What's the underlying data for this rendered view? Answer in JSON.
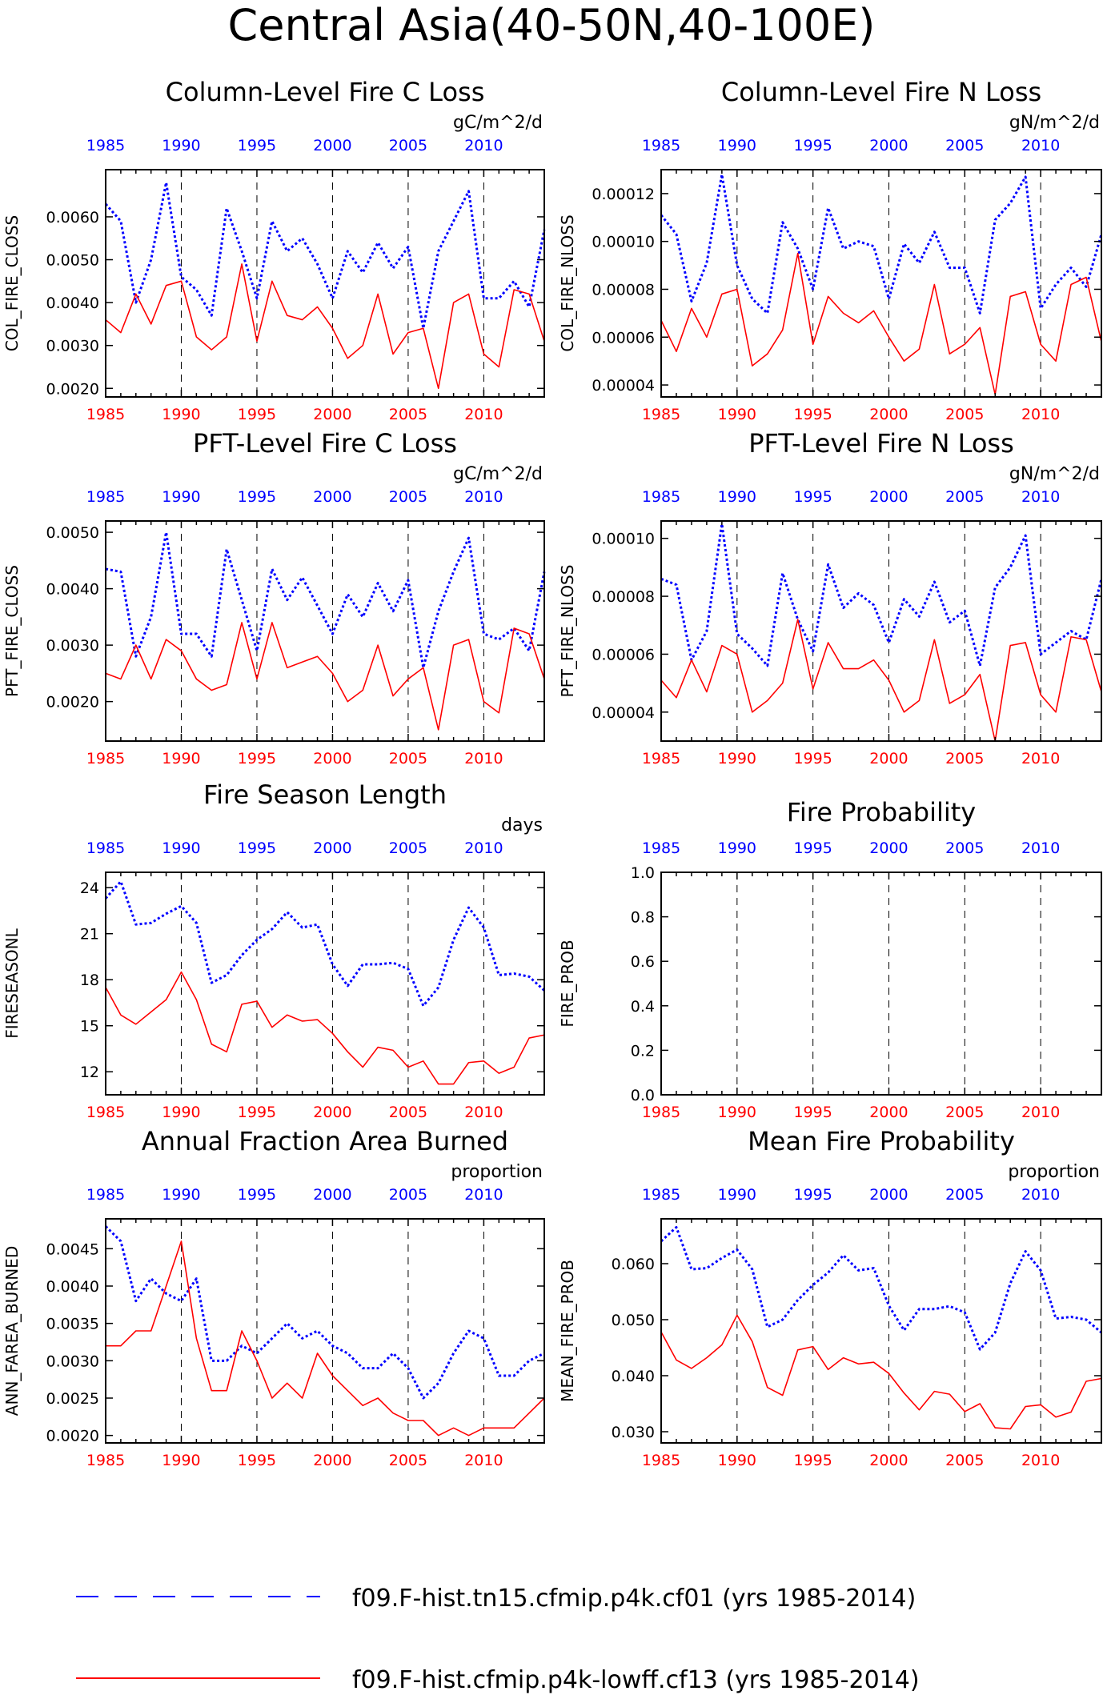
{
  "page_title": "Central Asia(40-50N,40-100E)",
  "colors": {
    "case1": "#0000ff",
    "case2": "#ff0000",
    "axis": "#000000"
  },
  "legend": {
    "case1_label": "f09.F-hist.tn15.cfmip.p4k.cf01 (yrs 1985-2014)",
    "case2_label": "f09.F-hist.cfmip.p4k-lowff.cf13 (yrs 1985-2014)"
  },
  "chart_data": [
    {
      "type": "line",
      "title": "Column-Level Fire C Loss",
      "units": "gC/m^2/d",
      "ylabel": "COL_FIRE_CLOSS",
      "xlim": [
        1985,
        2014
      ],
      "ylim": [
        0.0018,
        0.0071
      ],
      "yticks": [
        0.002,
        0.003,
        0.004,
        0.005,
        0.006
      ],
      "yticklabels": [
        "0.0020",
        "0.0030",
        "0.0040",
        "0.0050",
        "0.0060"
      ],
      "xticks": [
        1985,
        1990,
        1995,
        2000,
        2005,
        2010
      ],
      "x": [
        1985,
        1986,
        1987,
        1988,
        1989,
        1990,
        1991,
        1992,
        1993,
        1994,
        1995,
        1996,
        1997,
        1998,
        1999,
        2000,
        2001,
        2002,
        2003,
        2004,
        2005,
        2006,
        2007,
        2008,
        2009,
        2010,
        2011,
        2012,
        2013,
        2014
      ],
      "series": [
        {
          "values": [
            0.0063,
            0.0059,
            0.004,
            0.005,
            0.0068,
            0.0046,
            0.0043,
            0.0037,
            0.0062,
            0.0052,
            0.0041,
            0.0059,
            0.0052,
            0.0055,
            0.0049,
            0.0041,
            0.0052,
            0.0047,
            0.0054,
            0.0048,
            0.0053,
            0.0034,
            0.0052,
            0.0059,
            0.0066,
            0.0041,
            0.0041,
            0.0045,
            0.0039,
            0.0057
          ]
        },
        {
          "values": [
            0.0036,
            0.0033,
            0.0042,
            0.0035,
            0.0044,
            0.0045,
            0.0032,
            0.0029,
            0.0032,
            0.0049,
            0.0031,
            0.0045,
            0.0037,
            0.0036,
            0.0039,
            0.0034,
            0.0027,
            0.003,
            0.0042,
            0.0028,
            0.0033,
            0.0034,
            0.002,
            0.004,
            0.0042,
            0.0028,
            0.0025,
            0.0043,
            0.0042,
            0.0031
          ]
        }
      ]
    },
    {
      "type": "line",
      "title": "Column-Level Fire N Loss",
      "units": "gN/m^2/d",
      "ylabel": "COL_FIRE_NLOSS",
      "xlim": [
        1985,
        2014
      ],
      "ylim": [
        3.5e-05,
        0.00013
      ],
      "yticks": [
        4e-05,
        6e-05,
        8e-05,
        0.0001,
        0.00012
      ],
      "yticklabels": [
        "0.00004",
        "0.00006",
        "0.00008",
        "0.00010",
        "0.00012"
      ],
      "xticks": [
        1985,
        1990,
        1995,
        2000,
        2005,
        2010
      ],
      "x": [
        1985,
        1986,
        1987,
        1988,
        1989,
        1990,
        1991,
        1992,
        1993,
        1994,
        1995,
        1996,
        1997,
        1998,
        1999,
        2000,
        2001,
        2002,
        2003,
        2004,
        2005,
        2006,
        2007,
        2008,
        2009,
        2010,
        2011,
        2012,
        2013,
        2014
      ],
      "series": [
        {
          "values": [
            0.000111,
            0.000103,
            7.5e-05,
            9.1e-05,
            0.000128,
            9e-05,
            7.6e-05,
            7e-05,
            0.000108,
            9.7e-05,
            8e-05,
            0.000114,
            9.7e-05,
            0.0001,
            9.8e-05,
            7.6e-05,
            9.9e-05,
            9.1e-05,
            0.000104,
            8.9e-05,
            8.9e-05,
            7e-05,
            0.000109,
            0.000116,
            0.000127,
            7.2e-05,
            8.2e-05,
            8.9e-05,
            8.1e-05,
            0.000103
          ]
        },
        {
          "values": [
            6.7e-05,
            5.4e-05,
            7.2e-05,
            6e-05,
            7.8e-05,
            8e-05,
            4.8e-05,
            5.3e-05,
            6.3e-05,
            9.5e-05,
            5.7e-05,
            7.7e-05,
            7e-05,
            6.6e-05,
            7.1e-05,
            6e-05,
            5e-05,
            5.5e-05,
            8.2e-05,
            5.3e-05,
            5.7e-05,
            6.4e-05,
            3.6e-05,
            7.7e-05,
            7.9e-05,
            5.7e-05,
            5e-05,
            8.2e-05,
            8.5e-05,
            5.8e-05
          ]
        }
      ]
    },
    {
      "type": "line",
      "title": "PFT-Level Fire C Loss",
      "units": "gC/m^2/d",
      "ylabel": "PFT_FIRE_CLOSS",
      "xlim": [
        1985,
        2014
      ],
      "ylim": [
        0.0013,
        0.0052
      ],
      "yticks": [
        0.002,
        0.003,
        0.004,
        0.005
      ],
      "yticklabels": [
        "0.0020",
        "0.0030",
        "0.0040",
        "0.0050"
      ],
      "xticks": [
        1985,
        1990,
        1995,
        2000,
        2005,
        2010
      ],
      "x": [
        1985,
        1986,
        1987,
        1988,
        1989,
        1990,
        1991,
        1992,
        1993,
        1994,
        1995,
        1996,
        1997,
        1998,
        1999,
        2000,
        2001,
        2002,
        2003,
        2004,
        2005,
        2006,
        2007,
        2008,
        2009,
        2010,
        2011,
        2012,
        2013,
        2014
      ],
      "series": [
        {
          "values": [
            0.00435,
            0.0043,
            0.0028,
            0.0035,
            0.005,
            0.0032,
            0.0032,
            0.0028,
            0.0047,
            0.0038,
            0.0029,
            0.00435,
            0.0038,
            0.0042,
            0.0037,
            0.0032,
            0.0039,
            0.0035,
            0.0041,
            0.0036,
            0.00415,
            0.0026,
            0.0036,
            0.0043,
            0.0049,
            0.0032,
            0.0031,
            0.0033,
            0.0029,
            0.0043
          ]
        },
        {
          "values": [
            0.0025,
            0.0024,
            0.003,
            0.0024,
            0.0031,
            0.0029,
            0.0024,
            0.0022,
            0.0023,
            0.0034,
            0.0024,
            0.0034,
            0.0026,
            0.0027,
            0.0028,
            0.0025,
            0.002,
            0.0022,
            0.003,
            0.0021,
            0.0024,
            0.0026,
            0.0015,
            0.003,
            0.0031,
            0.002,
            0.0018,
            0.0033,
            0.0032,
            0.0024
          ]
        }
      ]
    },
    {
      "type": "line",
      "title": "PFT-Level Fire N Loss",
      "units": "gN/m^2/d",
      "ylabel": "PFT_FIRE_NLOSS",
      "xlim": [
        1985,
        2014
      ],
      "ylim": [
        3e-05,
        0.000106
      ],
      "yticks": [
        4e-05,
        6e-05,
        8e-05,
        0.0001
      ],
      "yticklabels": [
        "0.00004",
        "0.00006",
        "0.00008",
        "0.00010"
      ],
      "xticks": [
        1985,
        1990,
        1995,
        2000,
        2005,
        2010
      ],
      "x": [
        1985,
        1986,
        1987,
        1988,
        1989,
        1990,
        1991,
        1992,
        1993,
        1994,
        1995,
        1996,
        1997,
        1998,
        1999,
        2000,
        2001,
        2002,
        2003,
        2004,
        2005,
        2006,
        2007,
        2008,
        2009,
        2010,
        2011,
        2012,
        2013,
        2014
      ],
      "series": [
        {
          "values": [
            8.6e-05,
            8.4e-05,
            5.8e-05,
            6.8e-05,
            0.000105,
            6.7e-05,
            6.2e-05,
            5.6e-05,
            8.8e-05,
            7.2e-05,
            6.1e-05,
            9.1e-05,
            7.6e-05,
            8.1e-05,
            7.7e-05,
            6.4e-05,
            7.9e-05,
            7.3e-05,
            8.5e-05,
            7.1e-05,
            7.5e-05,
            5.6e-05,
            8.3e-05,
            9e-05,
            0.000101,
            6e-05,
            6.4e-05,
            6.8e-05,
            6.5e-05,
            8.6e-05
          ]
        },
        {
          "values": [
            5.1e-05,
            4.5e-05,
            5.8e-05,
            4.7e-05,
            6.3e-05,
            6e-05,
            4e-05,
            4.4e-05,
            5e-05,
            7.2e-05,
            4.8e-05,
            6.4e-05,
            5.5e-05,
            5.5e-05,
            5.8e-05,
            5.1e-05,
            4e-05,
            4.4e-05,
            6.5e-05,
            4.3e-05,
            4.6e-05,
            5.3e-05,
            3e-05,
            6.3e-05,
            6.4e-05,
            4.6e-05,
            4e-05,
            6.6e-05,
            6.5e-05,
            4.7e-05
          ]
        }
      ]
    },
    {
      "type": "line",
      "title": "Fire Season Length",
      "units": "days",
      "ylabel": "FIRESEASONL",
      "xlim": [
        1985,
        2014
      ],
      "ylim": [
        10.5,
        25
      ],
      "yticks": [
        12,
        15,
        18,
        21,
        24
      ],
      "yticklabels": [
        "12",
        "15",
        "18",
        "21",
        "24"
      ],
      "xticks": [
        1985,
        1990,
        1995,
        2000,
        2005,
        2010
      ],
      "x": [
        1985,
        1986,
        1987,
        1988,
        1989,
        1990,
        1991,
        1992,
        1993,
        1994,
        1995,
        1996,
        1997,
        1998,
        1999,
        2000,
        2001,
        2002,
        2003,
        2004,
        2005,
        2006,
        2007,
        2008,
        2009,
        2010,
        2011,
        2012,
        2013,
        2014
      ],
      "series": [
        {
          "values": [
            23.3,
            24.4,
            21.6,
            21.7,
            22.3,
            22.8,
            21.7,
            17.8,
            18.3,
            19.6,
            20.6,
            21.3,
            22.4,
            21.4,
            21.6,
            19.0,
            17.6,
            19.0,
            19.0,
            19.1,
            18.7,
            16.3,
            17.5,
            20.6,
            22.7,
            21.4,
            18.3,
            18.4,
            18.2,
            17.3
          ]
        },
        {
          "values": [
            17.5,
            15.7,
            15.1,
            15.9,
            16.7,
            18.5,
            16.7,
            13.8,
            13.3,
            16.4,
            16.6,
            14.9,
            15.7,
            15.3,
            15.4,
            14.5,
            13.3,
            12.3,
            13.6,
            13.4,
            12.3,
            12.7,
            11.2,
            11.2,
            12.6,
            12.7,
            11.9,
            12.3,
            14.2,
            14.4
          ]
        }
      ]
    },
    {
      "type": "line",
      "title": "Fire Probability",
      "units": "",
      "ylabel": "FIRE_PROB",
      "xlim": [
        1985,
        2014
      ],
      "ylim": [
        0,
        1
      ],
      "yticks": [
        0,
        0.2,
        0.4,
        0.6,
        0.8,
        1.0
      ],
      "yticklabels": [
        "0.0",
        "0.2",
        "0.4",
        "0.6",
        "0.8",
        "1.0"
      ],
      "xticks": [
        1985,
        1990,
        1995,
        2000,
        2005,
        2010
      ],
      "x": [],
      "series": [
        {
          "values": []
        },
        {
          "values": []
        }
      ]
    },
    {
      "type": "line",
      "title": "Annual Fraction Area Burned",
      "units": "proportion",
      "ylabel": "ANN_FAREA_BURNED",
      "xlim": [
        1985,
        2014
      ],
      "ylim": [
        0.0019,
        0.0049
      ],
      "yticks": [
        0.002,
        0.0025,
        0.003,
        0.0035,
        0.004,
        0.0045
      ],
      "yticklabels": [
        "0.0020",
        "0.0025",
        "0.0030",
        "0.0035",
        "0.0040",
        "0.0045"
      ],
      "xticks": [
        1985,
        1990,
        1995,
        2000,
        2005,
        2010
      ],
      "x": [
        1985,
        1986,
        1987,
        1988,
        1989,
        1990,
        1991,
        1992,
        1993,
        1994,
        1995,
        1996,
        1997,
        1998,
        1999,
        2000,
        2001,
        2002,
        2003,
        2004,
        2005,
        2006,
        2007,
        2008,
        2009,
        2010,
        2011,
        2012,
        2013,
        2014
      ],
      "series": [
        {
          "values": [
            0.0048,
            0.0046,
            0.0038,
            0.0041,
            0.0039,
            0.0038,
            0.0041,
            0.003,
            0.003,
            0.0032,
            0.0031,
            0.0033,
            0.0035,
            0.0033,
            0.0034,
            0.0032,
            0.0031,
            0.0029,
            0.0029,
            0.0031,
            0.0029,
            0.0025,
            0.0027,
            0.0031,
            0.0034,
            0.0033,
            0.0028,
            0.0028,
            0.003,
            0.0031
          ]
        },
        {
          "values": [
            0.0032,
            0.0032,
            0.0034,
            0.0034,
            0.004,
            0.0046,
            0.0033,
            0.0026,
            0.0026,
            0.0034,
            0.003,
            0.0025,
            0.0027,
            0.0025,
            0.0031,
            0.0028,
            0.0026,
            0.0024,
            0.0025,
            0.0023,
            0.0022,
            0.0022,
            0.002,
            0.0021,
            0.002,
            0.0021,
            0.0021,
            0.0021,
            0.0023,
            0.0025
          ]
        }
      ]
    },
    {
      "type": "line",
      "title": "Mean Fire Probability",
      "units": "proportion",
      "ylabel": "MEAN_FIRE_PROB",
      "xlim": [
        1985,
        2014
      ],
      "ylim": [
        0.028,
        0.068
      ],
      "yticks": [
        0.03,
        0.04,
        0.05,
        0.06
      ],
      "yticklabels": [
        "0.030",
        "0.040",
        "0.050",
        "0.060"
      ],
      "xticks": [
        1985,
        1990,
        1995,
        2000,
        2005,
        2010
      ],
      "x": [
        1985,
        1986,
        1987,
        1988,
        1989,
        1990,
        1991,
        1992,
        1993,
        1994,
        1995,
        1996,
        1997,
        1998,
        1999,
        2000,
        2001,
        2002,
        2003,
        2004,
        2005,
        2006,
        2007,
        2008,
        2009,
        2010,
        2011,
        2012,
        2013,
        2014
      ],
      "series": [
        {
          "values": [
            0.064,
            0.0665,
            0.059,
            0.0592,
            0.061,
            0.0625,
            0.059,
            0.0487,
            0.05,
            0.0535,
            0.0562,
            0.0584,
            0.0615,
            0.0588,
            0.0592,
            0.0525,
            0.0481,
            0.0519,
            0.0519,
            0.0524,
            0.0513,
            0.0447,
            0.0477,
            0.0565,
            0.0622,
            0.0588,
            0.0502,
            0.0505,
            0.05,
            0.0477
          ]
        },
        {
          "values": [
            0.0478,
            0.0428,
            0.0413,
            0.0432,
            0.0455,
            0.0508,
            0.0461,
            0.0379,
            0.0365,
            0.0446,
            0.0452,
            0.0411,
            0.0432,
            0.0421,
            0.0424,
            0.0404,
            0.0369,
            0.0339,
            0.0372,
            0.0367,
            0.0336,
            0.035,
            0.0307,
            0.0305,
            0.0345,
            0.0348,
            0.0326,
            0.0335,
            0.039,
            0.0395
          ]
        }
      ]
    }
  ]
}
